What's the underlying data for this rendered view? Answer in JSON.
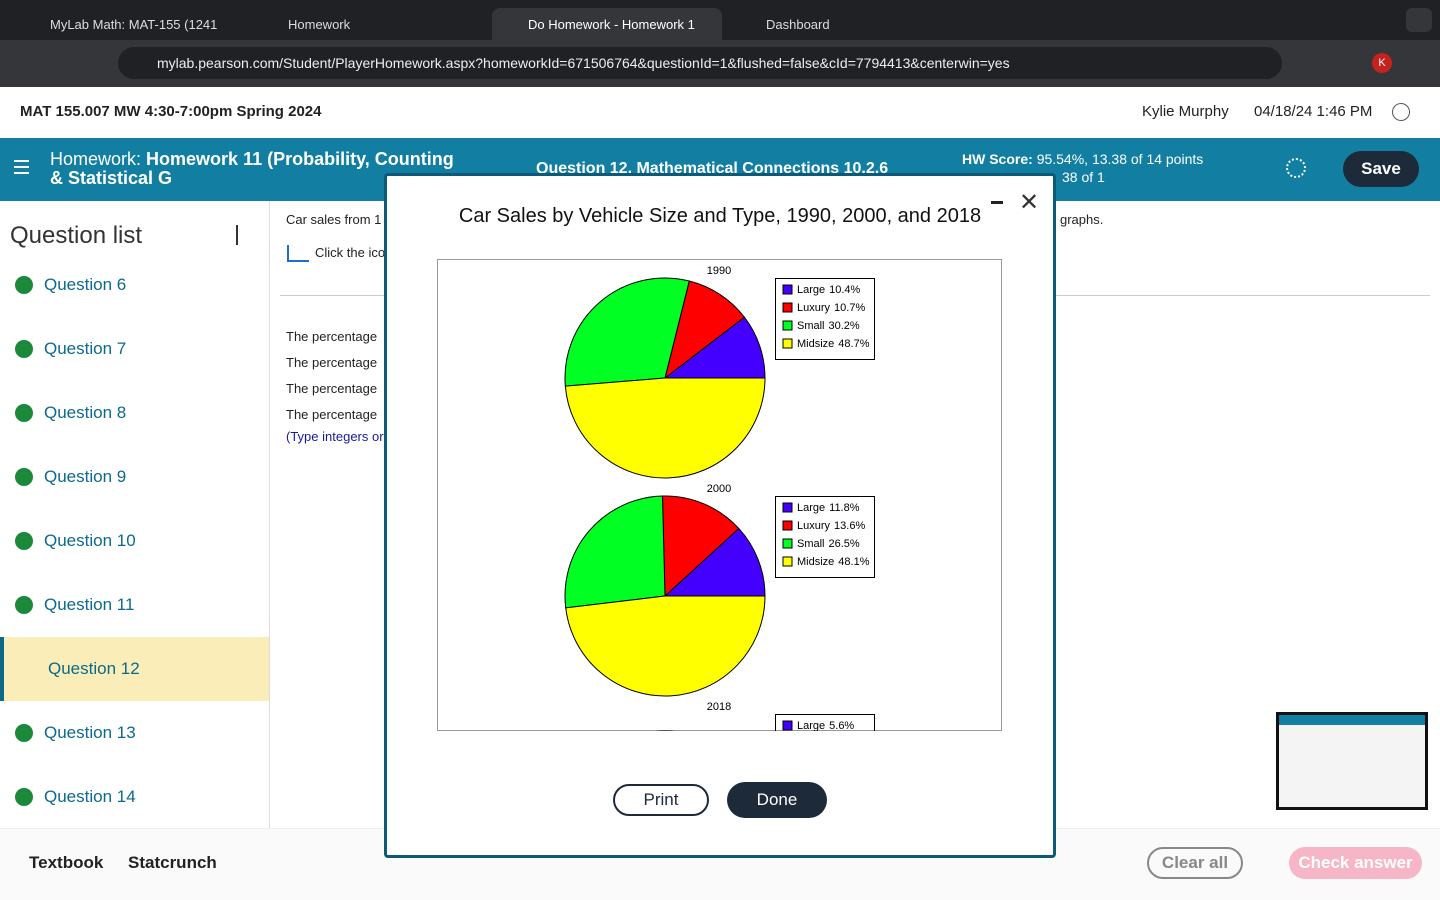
{
  "browser": {
    "tabs": [
      "MyLab Math: MAT-155 (1241",
      "Homework",
      "Do Homework - Homework 1",
      "Dashboard"
    ],
    "url": "mylab.pearson.com/Student/PlayerHomework.aspx?homeworkId=671506764&questionId=1&flushed=false&cId=7794413&centerwin=yes",
    "profile": "K"
  },
  "header": {
    "course": "MAT 155.007 MW 4:30-7:00pm Spring 2024",
    "user": "Kylie Murphy",
    "datetime": "04/18/24 1:46 PM"
  },
  "toolbar": {
    "label": "Homework:",
    "title": "Homework 11 (Probability, Counting & Statistical G",
    "question": "Question 12, Mathematical Connections 10.2.6",
    "score_label": "HW Score:",
    "score": "95.54%, 13.38 of 14 points",
    "points": "38 of 1",
    "save": "Save"
  },
  "sidebar": {
    "title": "Question list",
    "questions": [
      "Question 6",
      "Question 7",
      "Question 8",
      "Question 9",
      "Question 10",
      "Question 11",
      "Question 12",
      "Question 13",
      "Question 14"
    ],
    "current": 6
  },
  "content": {
    "intro": "Car sales from 1",
    "intro_end": "graphs.",
    "icon_text": "Click the ico",
    "lines": [
      "The percentage",
      "The percentage",
      "The percentage",
      "The percentage"
    ],
    "hint": "(Type integers or"
  },
  "dialog": {
    "title": "Car Sales by Vehicle Size and Type, 1990, 2000, and 2018",
    "charts": [
      {
        "label": "1990",
        "slices": [
          {
            "name": "Large",
            "value": 10.4,
            "value_label": "10.4%",
            "color": "#4400ff"
          },
          {
            "name": "Luxury",
            "value": 10.7,
            "value_label": "10.7%",
            "color": "#ff0000"
          },
          {
            "name": "Small",
            "value": 30.2,
            "value_label": "30.2%",
            "color": "#00ff22"
          },
          {
            "name": "Midsize",
            "value": 48.7,
            "value_label": "48.7%",
            "color": "#ffff00"
          }
        ]
      },
      {
        "label": "2000",
        "slices": [
          {
            "name": "Large",
            "value": 11.8,
            "value_label": "11.8%",
            "color": "#4400ff"
          },
          {
            "name": "Luxury",
            "value": 13.6,
            "value_label": "13.6%",
            "color": "#ff0000"
          },
          {
            "name": "Small",
            "value": 26.5,
            "value_label": "26.5%",
            "color": "#00ff22"
          },
          {
            "name": "Midsize",
            "value": 48.1,
            "value_label": "48.1%",
            "color": "#ffff00"
          }
        ]
      },
      {
        "label": "2018",
        "slices": [
          {
            "name": "Large",
            "value": 5.6,
            "value_label": "5.6%",
            "color": "#4400ff"
          }
        ]
      }
    ],
    "buttons": [
      "Print",
      "Done"
    ]
  },
  "footer": {
    "links": [
      "Textbook",
      "Statcrunch"
    ],
    "clear": "Clear all",
    "check": "Check answer"
  }
}
